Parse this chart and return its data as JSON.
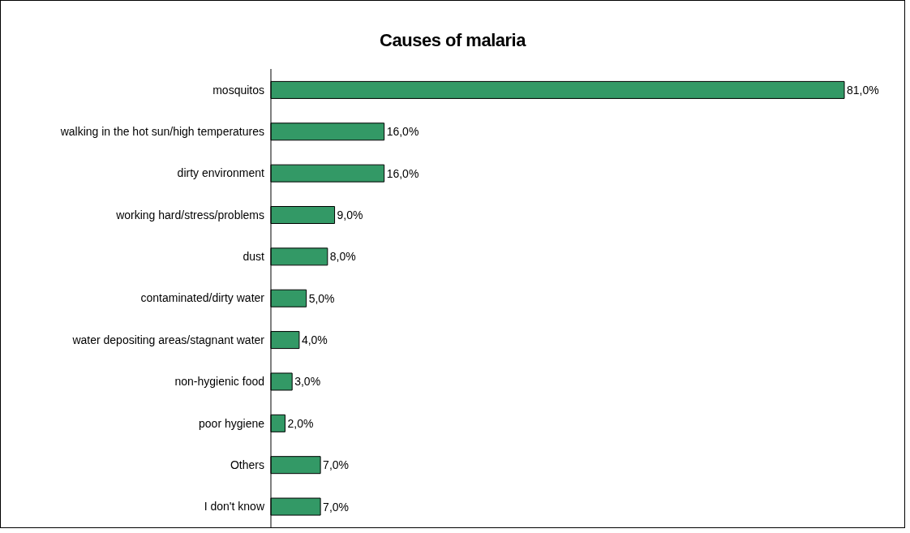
{
  "chart_data": {
    "type": "bar",
    "orientation": "horizontal",
    "title": "Causes of malaria",
    "categories": [
      "mosquitos",
      "walking in the hot sun/high temperatures",
      "dirty environment",
      "working hard/stress/problems",
      "dust",
      "contaminated/dirty water",
      "water depositing areas/stagnant water",
      "non-hygienic food",
      "poor hygiene",
      "Others",
      "I don't know"
    ],
    "values": [
      81,
      16,
      16,
      9,
      8,
      5,
      4,
      3,
      2,
      7,
      7
    ],
    "value_labels": [
      "81,0%",
      "16,0%",
      "16,0%",
      "9,0%",
      "8,0%",
      "5,0%",
      "4,0%",
      "3,0%",
      "2,0%",
      "7,0%",
      "7,0%"
    ],
    "color": "#339966"
  }
}
